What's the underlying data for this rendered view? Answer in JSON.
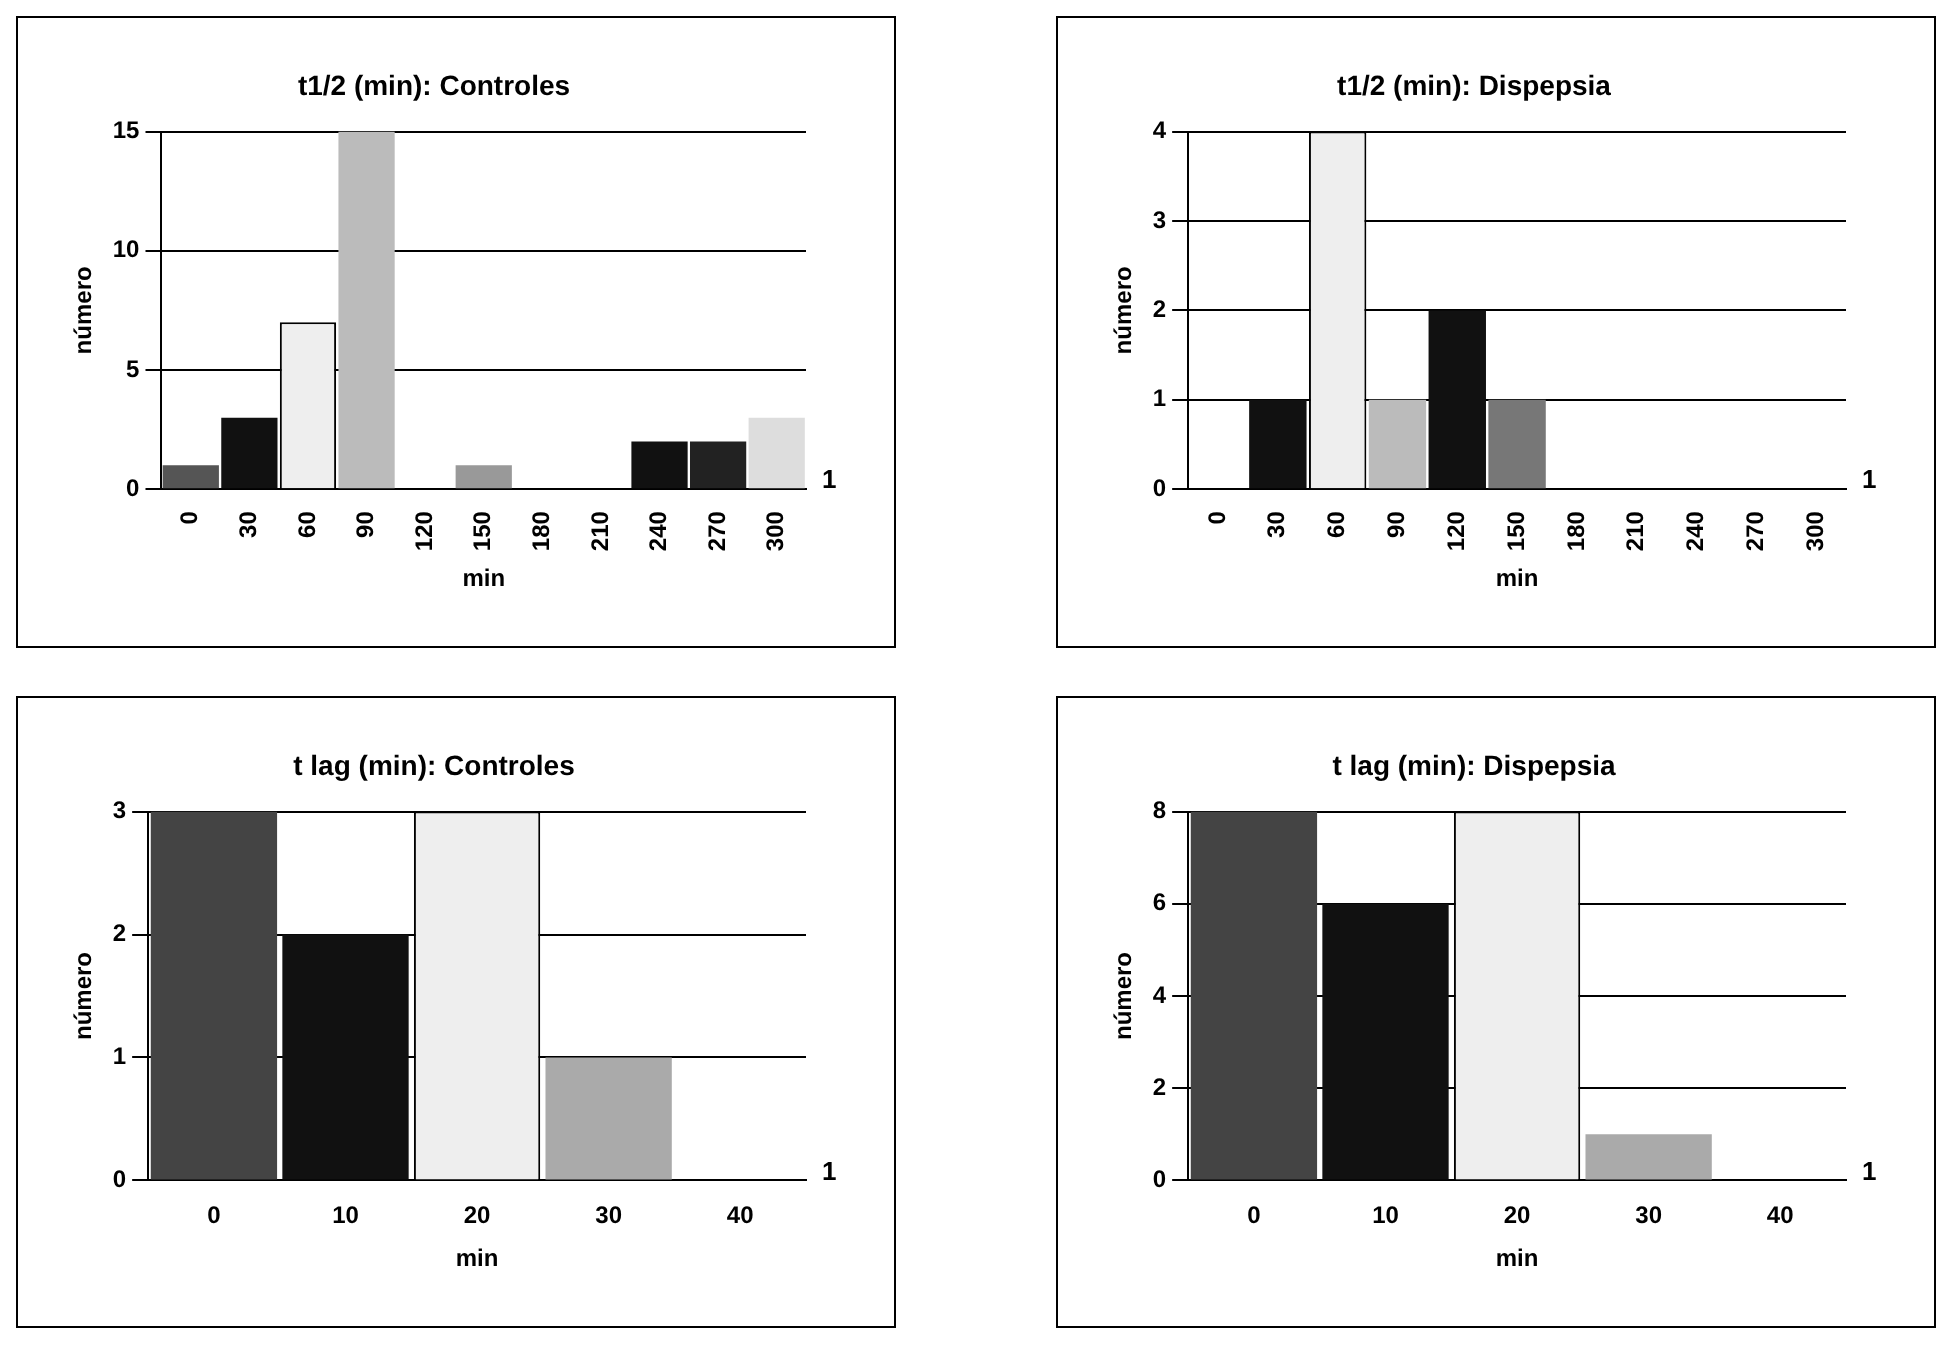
{
  "chart_data": [
    {
      "type": "bar",
      "title": "t1/2 (min): Controles",
      "xlabel": "min",
      "ylabel": "número",
      "categories": [
        "0",
        "30",
        "60",
        "90",
        "120",
        "150",
        "180",
        "210",
        "240",
        "270",
        "300"
      ],
      "values": [
        1,
        3,
        7,
        15,
        0,
        1,
        0,
        0,
        2,
        2,
        3
      ],
      "colors": [
        "#555555",
        "#111111",
        "#eeeeee",
        "#bbbbbb",
        "#111111",
        "#999999",
        "#111111",
        "#111111",
        "#111111",
        "#222222",
        "#dddddd"
      ],
      "ylim": [
        0,
        15
      ],
      "yticks": [
        0,
        5,
        10,
        15
      ],
      "grid": "y",
      "annotations": [
        "1"
      ]
    },
    {
      "type": "bar",
      "title": "t1/2 (min): Dispepsia",
      "xlabel": "min",
      "ylabel": "número",
      "categories": [
        "0",
        "30",
        "60",
        "90",
        "120",
        "150",
        "180",
        "210",
        "240",
        "270",
        "300"
      ],
      "values": [
        0,
        1,
        4,
        1,
        2,
        1,
        0,
        0,
        0,
        0,
        0
      ],
      "colors": [
        "#555555",
        "#111111",
        "#eeeeee",
        "#bbbbbb",
        "#111111",
        "#777777",
        "#111111",
        "#111111",
        "#111111",
        "#111111",
        "#111111"
      ],
      "ylim": [
        0,
        4
      ],
      "yticks": [
        0,
        1,
        2,
        3,
        4
      ],
      "grid": "y",
      "annotations": [
        "1"
      ]
    },
    {
      "type": "bar",
      "title": "t lag (min): Controles",
      "xlabel": "min",
      "ylabel": "número",
      "categories": [
        "0",
        "10",
        "20",
        "30",
        "40"
      ],
      "values": [
        3,
        2,
        3,
        1,
        0
      ],
      "colors": [
        "#444444",
        "#111111",
        "#eeeeee",
        "#aaaaaa",
        "#111111"
      ],
      "ylim": [
        0,
        3
      ],
      "yticks": [
        0,
        1,
        2,
        3
      ],
      "grid": "y",
      "annotations": [
        "1"
      ]
    },
    {
      "type": "bar",
      "title": "t lag (min): Dispepsia",
      "xlabel": "min",
      "ylabel": "número",
      "categories": [
        "0",
        "10",
        "20",
        "30",
        "40"
      ],
      "values": [
        8,
        6,
        8,
        1,
        0
      ],
      "colors": [
        "#444444",
        "#111111",
        "#eeeeee",
        "#aaaaaa",
        "#111111"
      ],
      "ylim": [
        0,
        8
      ],
      "yticks": [
        0,
        2,
        4,
        6,
        8
      ],
      "grid": "y",
      "annotations": [
        "1"
      ]
    }
  ]
}
